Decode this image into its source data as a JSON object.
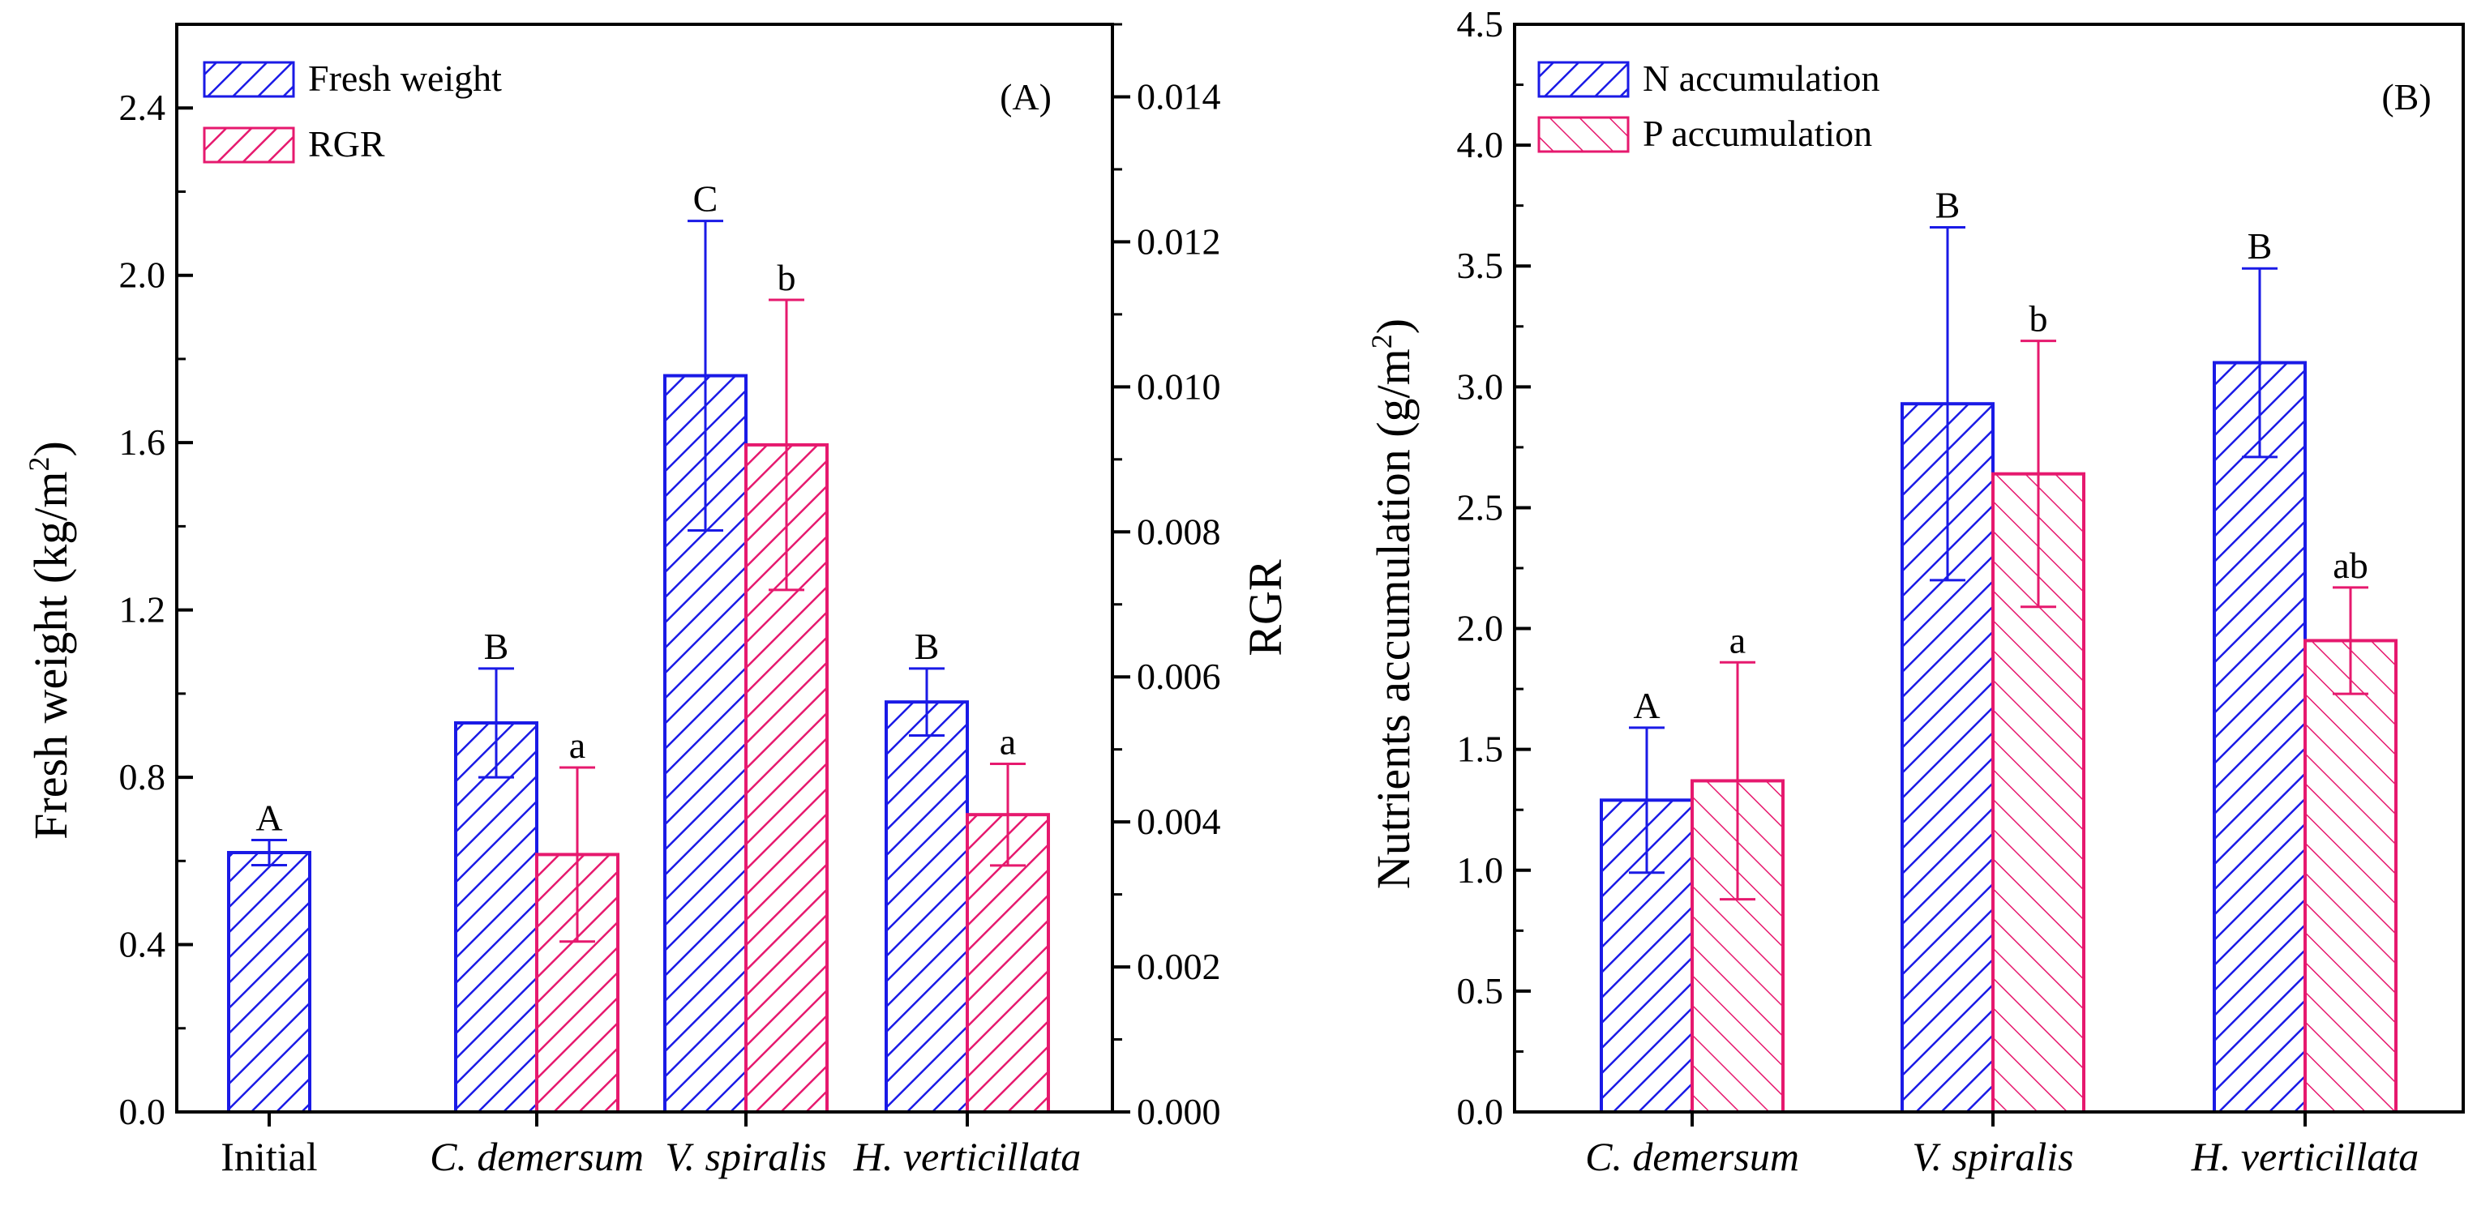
{
  "colors": {
    "blue": "#1a1ae6",
    "pink": "#e6196e",
    "axis": "#000000"
  },
  "chart_data": [
    {
      "type": "bar",
      "panel_label": "(A)",
      "categories": [
        "Initial",
        "C. demersum",
        "V. spiralis",
        "H. verticillata"
      ],
      "italic_categories": [
        false,
        true,
        true,
        true
      ],
      "ylabel": "Fresh weight (kg/m",
      "ylabel_sup": "2",
      "ylabel_end": ")",
      "y2label": "RGR",
      "ylim": [
        0,
        2.6
      ],
      "yticks": [
        "0.0",
        "0.4",
        "0.8",
        "1.2",
        "1.6",
        "2.0",
        "2.4"
      ],
      "y2lim": [
        0,
        0.015
      ],
      "y2ticks": [
        "0.000",
        "0.002",
        "0.004",
        "0.006",
        "0.008",
        "0.010",
        "0.012",
        "0.014"
      ],
      "series": [
        {
          "name": "Fresh weight",
          "axis": "left",
          "color": "blue",
          "hatch": "fwd",
          "values": [
            0.62,
            0.93,
            1.76,
            0.98
          ],
          "errors": [
            0.03,
            0.13,
            0.37,
            0.08
          ],
          "letters": [
            "A",
            "B",
            "C",
            "B"
          ]
        },
        {
          "name": "RGR",
          "axis": "right",
          "color": "pink",
          "hatch": "fwd",
          "values": [
            null,
            0.00355,
            0.0092,
            0.0041
          ],
          "errors": [
            null,
            0.0012,
            0.002,
            0.0007
          ],
          "letters": [
            null,
            "a",
            "b",
            "a"
          ]
        }
      ]
    },
    {
      "type": "bar",
      "panel_label": "(B)",
      "categories": [
        "C. demersum",
        "V. spiralis",
        "H. verticillata"
      ],
      "italic_categories": [
        true,
        true,
        true
      ],
      "ylabel": "Nutrients accumulation (g/m",
      "ylabel_sup": "2",
      "ylabel_end": ")",
      "ylim": [
        0,
        4.5
      ],
      "yticks": [
        "0.0",
        "0.5",
        "1.0",
        "1.5",
        "2.0",
        "2.5",
        "3.0",
        "3.5",
        "4.0",
        "4.5"
      ],
      "series": [
        {
          "name": "N accumulation",
          "axis": "left",
          "color": "blue",
          "hatch": "fwd",
          "values": [
            1.29,
            2.93,
            3.1
          ],
          "errors": [
            0.3,
            0.73,
            0.39
          ],
          "letters": [
            "A",
            "B",
            "B"
          ]
        },
        {
          "name": "P accumulation",
          "axis": "left",
          "color": "pink",
          "hatch": "back",
          "values": [
            1.37,
            2.64,
            1.95
          ],
          "errors": [
            0.49,
            0.55,
            0.22
          ],
          "letters": [
            "a",
            "b",
            "ab"
          ]
        }
      ]
    }
  ]
}
